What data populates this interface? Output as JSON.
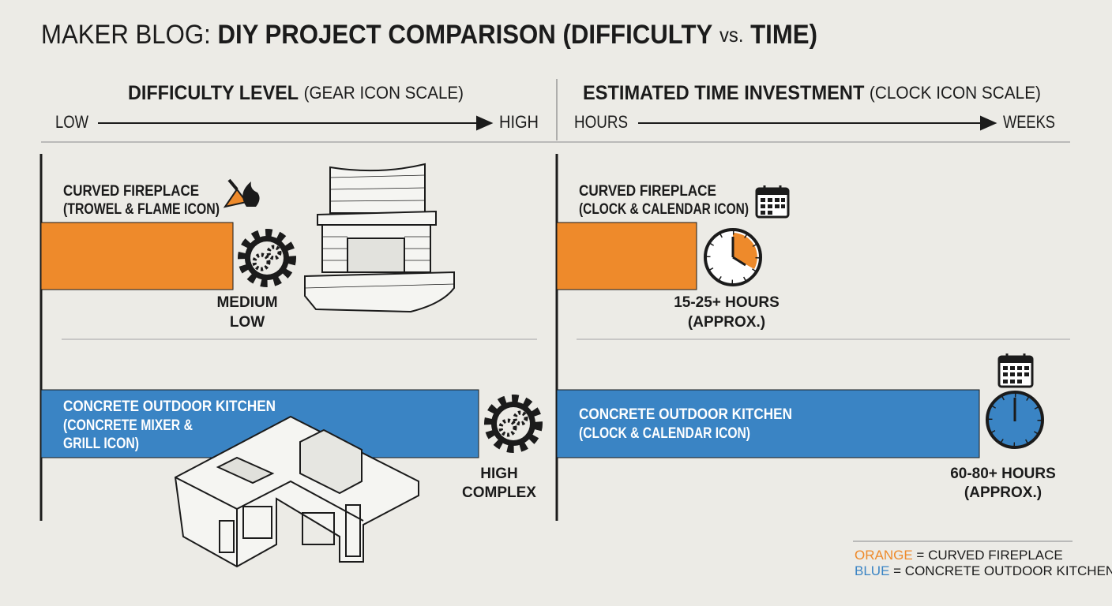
{
  "header": {
    "title_prefix": "MAKER BLOG:",
    "title_main": "DIY PROJECT COMPARISON (DIFFICULTY",
    "title_vs": "vs.",
    "title_end": "TIME)"
  },
  "panels": [
    {
      "heading": "DIFFICULTY LEVEL",
      "subheading": "(GEAR ICON SCALE)",
      "scale_start": "LOW",
      "scale_end": "HIGH",
      "items": [
        {
          "name": "CURVED FIREPLACE",
          "note": [
            "(TROWEL & FLAME ICON)"
          ],
          "rating": [
            "MEDIUM",
            "LOW"
          ]
        },
        {
          "name": "CONCRETE OUTDOOR KITCHEN",
          "note": [
            "(CONCRETE MIXER &",
            "GRILL ICON)"
          ],
          "rating": [
            "HIGH",
            "COMPLEX"
          ]
        }
      ]
    },
    {
      "heading": "ESTIMATED TIME INVESTMENT",
      "subheading": "(CLOCK ICON SCALE)",
      "scale_start": "HOURS",
      "scale_end": "WEEKS",
      "items": [
        {
          "name": "CURVED FIREPLACE",
          "note": [
            "(CLOCK & CALENDAR ICON)"
          ],
          "rating": [
            "15-25+ HOURS",
            "(APPROX.)"
          ]
        },
        {
          "name": "CONCRETE OUTDOOR KITCHEN",
          "note": [
            "(CLOCK & CALENDAR ICON)"
          ],
          "rating": [
            "60-80+ HOURS",
            "(APPROX.)"
          ]
        }
      ]
    }
  ],
  "legend": [
    {
      "key": "ORANGE",
      "text": "= CURVED FIREPLACE"
    },
    {
      "key": "BLUE",
      "text": "= CONCRETE OUTDOOR KITCHEN"
    }
  ]
}
